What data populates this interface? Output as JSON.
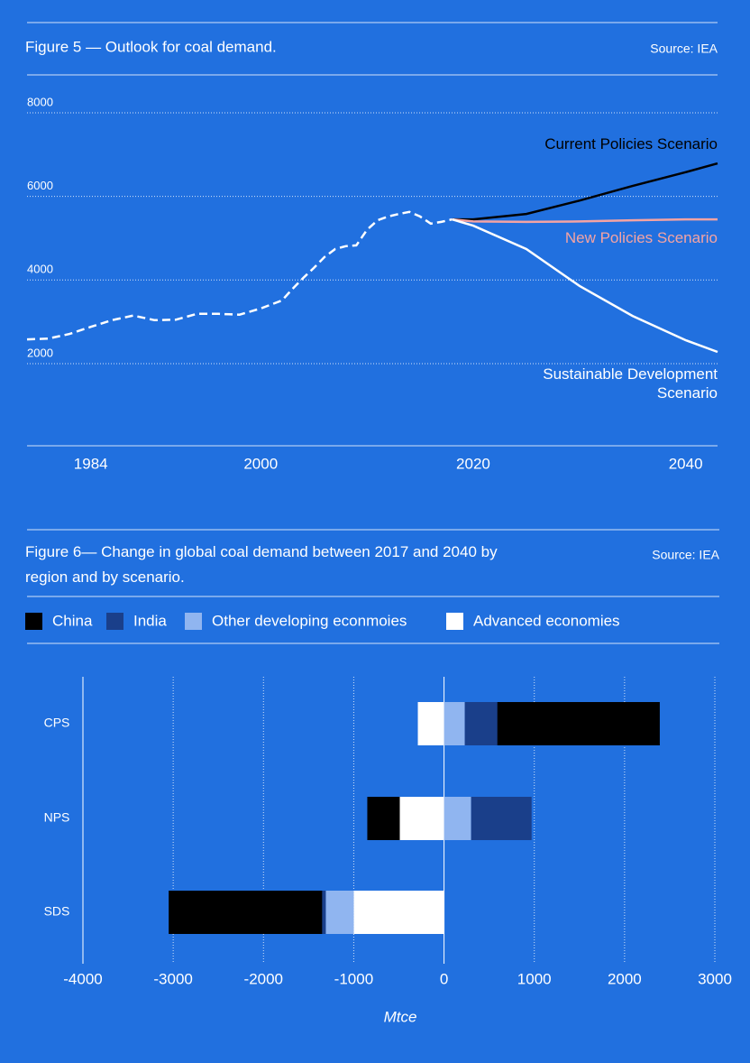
{
  "chart_data": [
    {
      "type": "line",
      "title": "Figure 5 — Outlook for coal demand.",
      "source": "Source: IEA",
      "x": [
        1978,
        1980,
        1982,
        1984,
        1986,
        1988,
        1990,
        1992,
        1994,
        1996,
        1998,
        2000,
        2002,
        2003,
        2004,
        2005,
        2006,
        2007,
        2008,
        2009,
        2010,
        2011,
        2012,
        2013,
        2014,
        2015,
        2016,
        2017,
        2018,
        2020,
        2025,
        2030,
        2035,
        2040,
        2043
      ],
      "series": [
        {
          "color": "#ffffff",
          "style": "dashed",
          "values": [
            2580,
            2600,
            2710,
            2880,
            3040,
            3150,
            3040,
            3050,
            3190,
            3190,
            3170,
            3320,
            3510,
            3790,
            4050,
            4290,
            4550,
            4740,
            4810,
            4830,
            5200,
            5430,
            5520,
            5580,
            5630,
            5520,
            5350,
            5390,
            5450,
            null,
            null,
            null,
            null,
            null,
            null
          ]
        },
        {
          "name": "Current Policies Scenario",
          "color": "#000000",
          "style": "solid",
          "values": [
            null,
            null,
            null,
            null,
            null,
            null,
            null,
            null,
            null,
            null,
            null,
            null,
            null,
            null,
            null,
            null,
            null,
            null,
            null,
            null,
            null,
            null,
            null,
            null,
            null,
            null,
            null,
            null,
            5450,
            5450,
            5580,
            5900,
            6250,
            6580,
            6790
          ]
        },
        {
          "name": "New Policies Scenario",
          "color": "#f4a3a3",
          "style": "solid",
          "values": [
            null,
            null,
            null,
            null,
            null,
            null,
            null,
            null,
            null,
            null,
            null,
            null,
            null,
            null,
            null,
            null,
            null,
            null,
            null,
            null,
            null,
            null,
            null,
            null,
            null,
            null,
            null,
            null,
            5450,
            5400,
            5390,
            5400,
            5430,
            5450,
            5450
          ]
        },
        {
          "name": "Sustainable Development Scenario",
          "color": "#ffffff",
          "style": "solid",
          "values": [
            null,
            null,
            null,
            null,
            null,
            null,
            null,
            null,
            null,
            null,
            null,
            null,
            null,
            null,
            null,
            null,
            null,
            null,
            null,
            null,
            null,
            null,
            null,
            null,
            null,
            null,
            null,
            null,
            5450,
            5300,
            4740,
            3860,
            3140,
            2560,
            2280
          ]
        }
      ],
      "xlim": [
        1978,
        2043
      ],
      "xticks": [
        1984,
        2000,
        2020,
        2040
      ],
      "ylim": [
        0,
        8000
      ],
      "yticks": [
        2000,
        4000,
        6000,
        8000
      ],
      "grid": true
    },
    {
      "type": "bar",
      "orientation": "horizontal",
      "stacked": true,
      "title": "Figure 6— Change in global coal demand between 2017 and 2040 by region and by scenario.",
      "source": "Source: IEA",
      "categories": [
        "CPS",
        "NPS",
        "SDS"
      ],
      "series": [
        {
          "name": "China",
          "color": "#000000",
          "values": [
            1800,
            -360,
            -1700
          ]
        },
        {
          "name": "India",
          "color": "#1a3f8a",
          "values": [
            360,
            670,
            -40
          ]
        },
        {
          "name": "Other developing econmoies",
          "color": "#90b5f0",
          "values": [
            230,
            300,
            -310
          ]
        },
        {
          "name": "Advanced economies",
          "color": "#ffffff",
          "values": [
            -290,
            -490,
            -1000
          ]
        }
      ],
      "xlim": [
        -4000,
        3000
      ],
      "xticks": [
        -4000,
        -3000,
        -2000,
        -1000,
        0,
        1000,
        2000,
        3000
      ],
      "x_label": "Mtce",
      "grid": true
    }
  ]
}
